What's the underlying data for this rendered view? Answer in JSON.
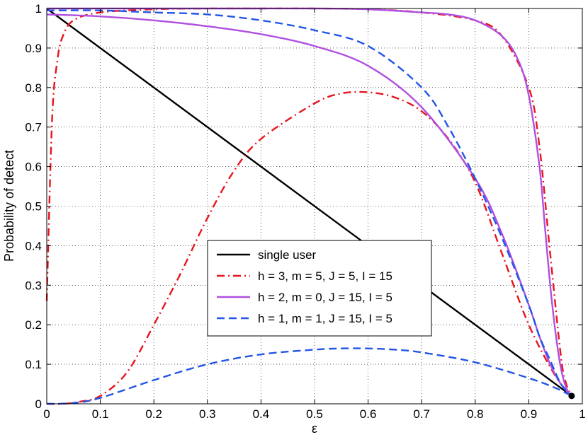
{
  "chart_data": {
    "type": "line",
    "xlabel": "ε",
    "ylabel": "Probability of detect",
    "xlim": [
      0,
      1
    ],
    "ylim": [
      0,
      1
    ],
    "xticks": [
      "0",
      "0.1",
      "0.2",
      "0.3",
      "0.4",
      "0.5",
      "0.6",
      "0.7",
      "0.8",
      "0.9",
      "1"
    ],
    "yticks": [
      "0",
      "0.1",
      "0.2",
      "0.3",
      "0.4",
      "0.5",
      "0.6",
      "0.7",
      "0.8",
      "0.9",
      "1"
    ],
    "grid": true,
    "legend_position": "center",
    "series": [
      {
        "name": "single user",
        "color": "#000000",
        "style": "solid",
        "x": [
          0,
          0.98
        ],
        "y": [
          1.0,
          0.02
        ]
      },
      {
        "name": "h = 3, m = 5, J = 5, I = 15",
        "color": "#e8141c",
        "style": "dashdot",
        "x": [
          0,
          0.01,
          0.02,
          0.03,
          0.05,
          0.1,
          0.2,
          0.3,
          0.4,
          0.5,
          0.6,
          0.7,
          0.8,
          0.85,
          0.9,
          0.92,
          0.94,
          0.96,
          0.97,
          0.98
        ],
        "y": [
          0.26,
          0.72,
          0.87,
          0.93,
          0.97,
          0.99,
          0.998,
          1.0,
          1.0,
          1.0,
          0.998,
          0.99,
          0.97,
          0.93,
          0.8,
          0.65,
          0.38,
          0.12,
          0.05,
          0.02
        ]
      },
      {
        "name": "h = 3, m = 5, J = 5, I = 15",
        "color": "#e8141c",
        "style": "dashdot",
        "x": [
          0,
          0.03,
          0.06,
          0.1,
          0.15,
          0.2,
          0.25,
          0.3,
          0.35,
          0.4,
          0.5,
          0.55,
          0.6,
          0.65,
          0.7,
          0.75,
          0.8,
          0.85,
          0.9,
          0.95,
          0.98
        ],
        "y": [
          0.0,
          0.0,
          0.005,
          0.02,
          0.08,
          0.2,
          0.33,
          0.47,
          0.59,
          0.67,
          0.76,
          0.785,
          0.788,
          0.775,
          0.74,
          0.67,
          0.56,
          0.38,
          0.2,
          0.07,
          0.02
        ]
      },
      {
        "name": "h = 2, m = 0, J = 15, I = 5",
        "color": "#b04fe0",
        "style": "solid",
        "x": [
          0,
          0.1,
          0.2,
          0.3,
          0.4,
          0.5,
          0.6,
          0.7,
          0.8,
          0.85,
          0.9,
          0.92,
          0.94,
          0.96,
          0.98
        ],
        "y": [
          0.985,
          0.98,
          0.97,
          0.955,
          0.935,
          0.905,
          0.855,
          0.75,
          0.57,
          0.43,
          0.25,
          0.17,
          0.1,
          0.05,
          0.02
        ]
      },
      {
        "name": "h = 2, m = 0, J = 15, I = 5",
        "color": "#b04fe0",
        "style": "solid",
        "x": [
          0,
          0.1,
          0.2,
          0.3,
          0.4,
          0.5,
          0.6,
          0.7,
          0.75,
          0.8,
          0.85,
          0.88,
          0.9,
          0.92,
          0.93,
          0.94,
          0.95,
          0.96,
          0.97,
          0.98
        ],
        "y": [
          1.0,
          1.0,
          1.0,
          1.0,
          1.0,
          1.0,
          0.998,
          0.99,
          0.985,
          0.97,
          0.93,
          0.87,
          0.78,
          0.6,
          0.45,
          0.3,
          0.18,
          0.09,
          0.04,
          0.02
        ]
      },
      {
        "name": "h = 1, m = 1, J = 15, I = 5",
        "color": "#2255e8",
        "style": "dashed",
        "x": [
          0,
          0.1,
          0.2,
          0.3,
          0.4,
          0.5,
          0.6,
          0.7,
          0.75,
          0.8,
          0.85,
          0.9,
          0.92,
          0.94,
          0.96,
          0.98
        ],
        "y": [
          0.995,
          0.995,
          0.99,
          0.985,
          0.97,
          0.945,
          0.905,
          0.8,
          0.7,
          0.57,
          0.42,
          0.25,
          0.17,
          0.11,
          0.05,
          0.02
        ]
      },
      {
        "name": "h = 1, m = 1, J = 15, I = 5",
        "color": "#2255e8",
        "style": "dashed",
        "x": [
          0,
          0.05,
          0.1,
          0.2,
          0.3,
          0.4,
          0.5,
          0.55,
          0.6,
          0.65,
          0.7,
          0.8,
          0.9,
          0.95,
          0.98
        ],
        "y": [
          0.0,
          0.002,
          0.015,
          0.06,
          0.1,
          0.125,
          0.137,
          0.14,
          0.14,
          0.137,
          0.13,
          0.105,
          0.065,
          0.04,
          0.02
        ]
      }
    ],
    "marker": {
      "x": 0.98,
      "y": 0.02,
      "color": "#000000"
    },
    "legend": [
      {
        "name": "single user",
        "color": "#000000",
        "style": "solid"
      },
      {
        "name": "h = 3, m = 5, J = 5, I = 15",
        "color": "#e8141c",
        "style": "dashdot"
      },
      {
        "name": "h = 2, m = 0, J = 15, I = 5",
        "color": "#b04fe0",
        "style": "solid"
      },
      {
        "name": "h = 1, m = 1, J = 15, I = 5",
        "color": "#2255e8",
        "style": "dashed"
      }
    ]
  }
}
